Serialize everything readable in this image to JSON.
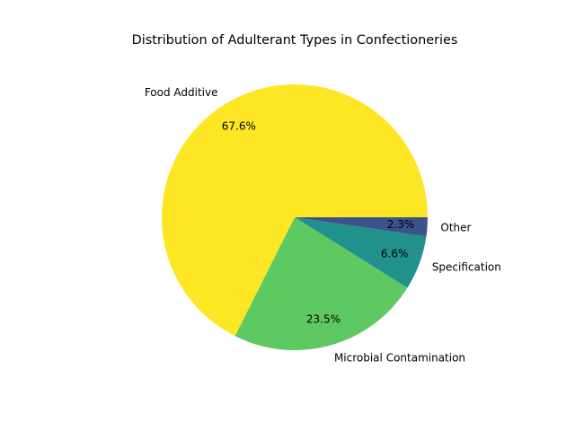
{
  "chart_data": {
    "type": "pie",
    "title": "Distribution of Adulterant Types in Confectioneries",
    "slices": [
      {
        "label": "Food Additive",
        "value": 67.6,
        "pct_label": "67.6%",
        "color": "#fde725"
      },
      {
        "label": "Microbial Contamination",
        "value": 23.5,
        "pct_label": "23.5%",
        "color": "#5ec962"
      },
      {
        "label": "Specification",
        "value": 6.6,
        "pct_label": "6.6%",
        "color": "#21918c"
      },
      {
        "label": "Other",
        "value": 2.3,
        "pct_label": "2.3%",
        "color": "#3b528b"
      }
    ],
    "direction": "counterclockwise",
    "legend": "none"
  }
}
